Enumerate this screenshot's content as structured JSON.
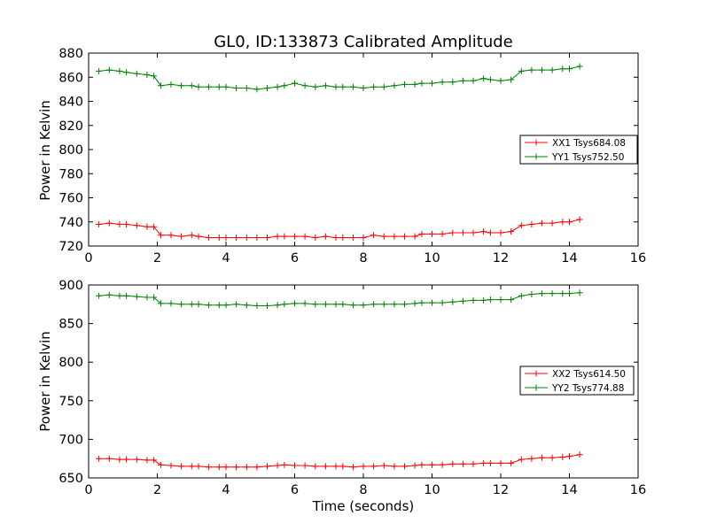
{
  "figure": {
    "title": "GL0, ID:133873 Calibrated Amplitude",
    "xlabel": "Time (seconds)"
  },
  "chart_data": [
    {
      "type": "line",
      "title": "GL0, ID:133873 Calibrated Amplitude",
      "xlabel": "",
      "ylabel": "Power in Kelvin",
      "xlim": [
        0,
        16
      ],
      "ylim": [
        720,
        880
      ],
      "xticks": [
        "0",
        "2",
        "4",
        "6",
        "8",
        "10",
        "12",
        "14",
        "16"
      ],
      "yticks": [
        "720",
        "740",
        "760",
        "780",
        "800",
        "820",
        "840",
        "860",
        "880"
      ],
      "grid": false,
      "legend_placement": "center-right",
      "x": [
        0.3,
        0.6,
        0.9,
        1.1,
        1.4,
        1.7,
        1.9,
        2.1,
        2.4,
        2.7,
        3.0,
        3.2,
        3.5,
        3.8,
        4.0,
        4.3,
        4.6,
        4.9,
        5.2,
        5.5,
        5.7,
        6.0,
        6.3,
        6.6,
        6.9,
        7.2,
        7.4,
        7.7,
        8.0,
        8.3,
        8.6,
        8.9,
        9.2,
        9.5,
        9.7,
        10.0,
        10.3,
        10.6,
        10.9,
        11.2,
        11.5,
        11.7,
        12.0,
        12.3,
        12.6,
        12.9,
        13.2,
        13.5,
        13.8,
        14.0,
        14.3
      ],
      "series": [
        {
          "name": "XX1 Tsys684.08",
          "color": "#ff0000",
          "values": [
            738,
            739,
            738,
            738,
            737,
            736,
            736,
            729,
            729,
            728,
            729,
            728,
            727,
            727,
            727,
            727,
            727,
            727,
            727,
            728,
            728,
            728,
            728,
            727,
            728,
            727,
            727,
            727,
            727,
            729,
            728,
            728,
            728,
            728,
            730,
            730,
            730,
            731,
            731,
            731,
            732,
            731,
            731,
            732,
            737,
            738,
            739,
            739,
            740,
            740,
            742
          ]
        },
        {
          "name": "YY1 Tsys752.50",
          "color": "#008000",
          "values": [
            865,
            866,
            865,
            864,
            863,
            862,
            861,
            853,
            854,
            853,
            853,
            852,
            852,
            852,
            852,
            851,
            851,
            850,
            851,
            852,
            853,
            855,
            853,
            852,
            853,
            852,
            852,
            852,
            851,
            852,
            852,
            853,
            854,
            854,
            855,
            855,
            856,
            856,
            857,
            857,
            859,
            858,
            857,
            858,
            865,
            866,
            866,
            866,
            867,
            867,
            869
          ]
        }
      ]
    },
    {
      "type": "line",
      "title": "",
      "xlabel": "Time (seconds)",
      "ylabel": "Power in Kelvin",
      "xlim": [
        0,
        16
      ],
      "ylim": [
        650,
        900
      ],
      "xticks": [
        "0",
        "2",
        "4",
        "6",
        "8",
        "10",
        "12",
        "14",
        "16"
      ],
      "yticks": [
        "650",
        "700",
        "750",
        "800",
        "850",
        "900"
      ],
      "grid": false,
      "legend_placement": "center-right",
      "x": [
        0.3,
        0.6,
        0.9,
        1.1,
        1.4,
        1.7,
        1.9,
        2.1,
        2.4,
        2.7,
        3.0,
        3.2,
        3.5,
        3.8,
        4.0,
        4.3,
        4.6,
        4.9,
        5.2,
        5.5,
        5.7,
        6.0,
        6.3,
        6.6,
        6.9,
        7.2,
        7.4,
        7.7,
        8.0,
        8.3,
        8.6,
        8.9,
        9.2,
        9.5,
        9.7,
        10.0,
        10.3,
        10.6,
        10.9,
        11.2,
        11.5,
        11.7,
        12.0,
        12.3,
        12.6,
        12.9,
        13.2,
        13.5,
        13.8,
        14.0,
        14.3
      ],
      "series": [
        {
          "name": "XX2 Tsys614.50",
          "color": "#ff0000",
          "values": [
            675,
            675,
            674,
            674,
            674,
            673,
            673,
            667,
            666,
            665,
            665,
            665,
            664,
            664,
            664,
            664,
            664,
            664,
            665,
            666,
            667,
            666,
            666,
            665,
            665,
            665,
            665,
            664,
            665,
            665,
            666,
            665,
            665,
            666,
            667,
            667,
            667,
            668,
            668,
            668,
            669,
            669,
            669,
            669,
            674,
            675,
            676,
            676,
            677,
            678,
            680
          ]
        },
        {
          "name": "YY2 Tsys774.88",
          "color": "#008000",
          "values": [
            886,
            887,
            886,
            886,
            885,
            884,
            884,
            876,
            876,
            875,
            875,
            875,
            874,
            874,
            874,
            875,
            874,
            873,
            873,
            874,
            875,
            876,
            876,
            875,
            875,
            875,
            875,
            874,
            874,
            875,
            875,
            875,
            875,
            876,
            877,
            877,
            877,
            878,
            879,
            880,
            880,
            881,
            881,
            881,
            886,
            888,
            889,
            889,
            889,
            889,
            890
          ]
        }
      ]
    }
  ]
}
